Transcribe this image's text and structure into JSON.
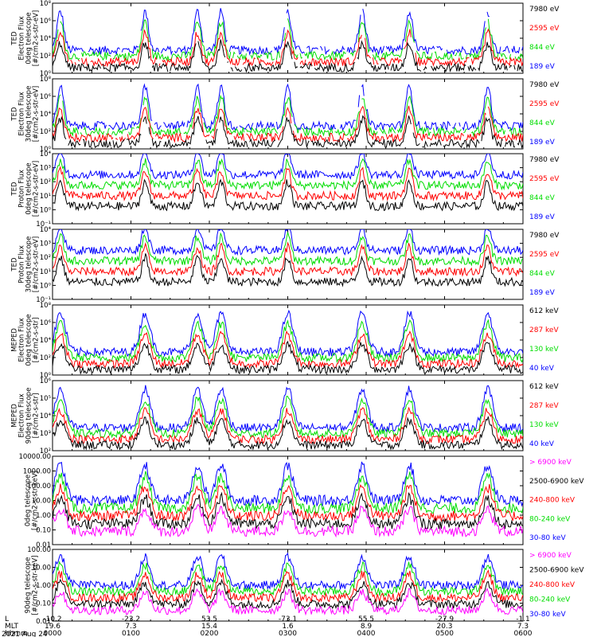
{
  "chart_data": {
    "type": "line",
    "date": "2021 Aug 24",
    "time_axis": {
      "row_labels": [
        "L",
        "MLT",
        "hhmm"
      ],
      "ticks": [
        {
          "l": "-10.2",
          "mlt": "19.6",
          "hhmm": "0000"
        },
        {
          "l": "-23.2",
          "mlt": "7.3",
          "hhmm": "0100"
        },
        {
          "l": "53.5",
          "mlt": "15.4",
          "hhmm": "0200"
        },
        {
          "l": "-73.1",
          "mlt": "1.6",
          "hhmm": "0300"
        },
        {
          "l": "55.5",
          "mlt": "8.9",
          "hhmm": "0400"
        },
        {
          "l": "-27.9",
          "mlt": "20.3",
          "hhmm": "0500"
        },
        {
          "l": "-1.1",
          "mlt": "7.3",
          "hhmm": "0600"
        }
      ]
    },
    "panels": [
      {
        "ylabel_lines": [
          "TED",
          "Electron Flux",
          "0deg telescope",
          "[#/cm2-s-str-eV]"
        ],
        "yscale": "log",
        "yticks": [
          "10⁸",
          "10⁶",
          "10⁴",
          "10²",
          "10⁰"
        ],
        "ylog_range": [
          0,
          8
        ],
        "legend": [
          {
            "label": "7980 eV",
            "color": "#000000"
          },
          {
            "label": "2595 eV",
            "color": "#ff0000"
          },
          {
            "label": "844 eV",
            "color": "#00dd00"
          },
          {
            "label": "189 eV",
            "color": "#0000ff"
          }
        ]
      },
      {
        "ylabel_lines": [
          "TED",
          "Electron Flux",
          "30deg telescope",
          "[#/cm2-s-str-eV]"
        ],
        "yscale": "log",
        "yticks": [
          "10⁸",
          "10⁶",
          "10⁴",
          "10²",
          "10⁰"
        ],
        "ylog_range": [
          0,
          8
        ],
        "legend": [
          {
            "label": "7980 eV",
            "color": "#000000"
          },
          {
            "label": "2595 eV",
            "color": "#ff0000"
          },
          {
            "label": "844 eV",
            "color": "#00dd00"
          },
          {
            "label": "189 eV",
            "color": "#0000ff"
          }
        ]
      },
      {
        "ylabel_lines": [
          "TED",
          "Proton Flux",
          "0deg telescope",
          "[#/cm2-s-str-eV]"
        ],
        "yscale": "log",
        "yticks": [
          "10⁴",
          "10³",
          "10²",
          "10¹",
          "10⁰",
          "10⁻¹"
        ],
        "ylog_range": [
          -1,
          4
        ],
        "legend": [
          {
            "label": "7980 eV",
            "color": "#000000"
          },
          {
            "label": "2595 eV",
            "color": "#ff0000"
          },
          {
            "label": "844 eV",
            "color": "#00dd00"
          },
          {
            "label": "189 eV",
            "color": "#0000ff"
          }
        ]
      },
      {
        "ylabel_lines": [
          "TED",
          "Proton Flux",
          "30deg telescope",
          "[#/cm2-s-str-eV]"
        ],
        "yscale": "log",
        "yticks": [
          "10⁴",
          "10³",
          "10²",
          "10¹",
          "10⁰",
          "10⁻¹"
        ],
        "ylog_range": [
          -1,
          4
        ],
        "legend": [
          {
            "label": "7980 eV",
            "color": "#000000"
          },
          {
            "label": "2595 eV",
            "color": "#ff0000"
          },
          {
            "label": "844 eV",
            "color": "#00dd00"
          },
          {
            "label": "189 eV",
            "color": "#0000ff"
          }
        ]
      },
      {
        "ylabel_lines": [
          "MEPED",
          "Electron Flux",
          "0deg telescope",
          "[#/cm2-s-str]"
        ],
        "yscale": "log",
        "yticks": [
          "10⁸",
          "10⁶",
          "10⁴",
          "10²",
          "10⁰"
        ],
        "ylog_range": [
          0,
          8
        ],
        "legend": [
          {
            "label": "612 keV",
            "color": "#000000"
          },
          {
            "label": "287 keV",
            "color": "#ff0000"
          },
          {
            "label": "130 keV",
            "color": "#00dd00"
          },
          {
            "label": "40 keV",
            "color": "#0000ff"
          }
        ]
      },
      {
        "ylabel_lines": [
          "MEPED",
          "Electron Flux",
          "90deg telescope",
          "[#/cm2-s-str]"
        ],
        "yscale": "log",
        "yticks": [
          "10⁶",
          "10⁵",
          "10⁴",
          "10³",
          "10²"
        ],
        "ylog_range": [
          1.7,
          6
        ],
        "legend": [
          {
            "label": "612 keV",
            "color": "#000000"
          },
          {
            "label": "287 keV",
            "color": "#ff0000"
          },
          {
            "label": "130 keV",
            "color": "#00dd00"
          },
          {
            "label": "40 keV",
            "color": "#0000ff"
          }
        ]
      },
      {
        "ylabel_lines": [
          "0deg telescope",
          "[#/cm2-s-str-keV]"
        ],
        "yscale": "log",
        "yticks": [
          "10000.00",
          "1000.00",
          "100.00",
          "10.00",
          "1.00",
          "0.10",
          "0.01"
        ],
        "ylog_range": [
          -2,
          4
        ],
        "legend": [
          {
            "label": "> 6900 keV",
            "color": "#ff00ff"
          },
          {
            "label": "2500-6900 keV",
            "color": "#000000"
          },
          {
            "label": "240-800 keV",
            "color": "#ff0000"
          },
          {
            "label": "80-240 keV",
            "color": "#00dd00"
          },
          {
            "label": "30-80 keV",
            "color": "#0000ff"
          }
        ]
      },
      {
        "ylabel_lines": [
          "90deg telescope",
          "[#/cm2-s-str-keV]"
        ],
        "yscale": "log",
        "yticks": [
          "100.00",
          "10.00",
          "1.00",
          "0.10",
          "0.01"
        ],
        "ylog_range": [
          -2,
          3
        ],
        "legend": [
          {
            "label": "> 6900 keV",
            "color": "#ff00ff"
          },
          {
            "label": "2500-6900 keV",
            "color": "#000000"
          },
          {
            "label": "240-800 keV",
            "color": "#ff0000"
          },
          {
            "label": "80-240 keV",
            "color": "#00dd00"
          },
          {
            "label": "30-80 keV",
            "color": "#0000ff"
          }
        ]
      }
    ]
  }
}
